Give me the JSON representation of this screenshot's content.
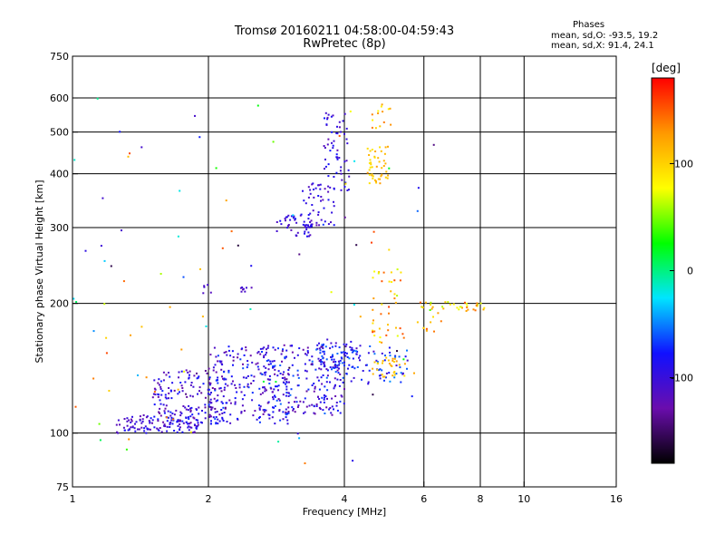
{
  "header": {
    "title_line1": "Tromsø 20160211 04:58:00-04:59:43",
    "title_line2": "RwPretec (8p)"
  },
  "stats": {
    "heading": "Phases",
    "line_o": "mean, sd,O: -93.5, 19.2",
    "line_x": "mean, sd,X:  91.4, 24.1"
  },
  "colorbar": {
    "title": "[deg]",
    "ticks": [
      "100",
      "0",
      "-100"
    ],
    "range": [
      -180,
      180
    ],
    "colors": [
      "#000000",
      "#6a0dad",
      "#1010ff",
      "#00e5ff",
      "#00ff00",
      "#ffff00",
      "#ff9900",
      "#ff0000"
    ]
  },
  "chart_data": {
    "type": "scatter",
    "xlabel": "Frequency [MHz]",
    "ylabel": "Stationary phase Virtual Height [km]",
    "xscale": "log",
    "yscale": "log",
    "xlim": [
      1,
      16
    ],
    "ylim": [
      75,
      750
    ],
    "xticks": [
      1,
      2,
      4,
      6,
      8,
      10,
      16
    ],
    "xtick_labels": [
      "1",
      "2",
      "4",
      "6",
      "8",
      "10",
      "16"
    ],
    "yticks": [
      75,
      100,
      200,
      300,
      400,
      500,
      600,
      750
    ],
    "ytick_labels": [
      "75",
      "100",
      "200",
      "300",
      "400",
      "500",
      "600",
      "750"
    ],
    "grid": true,
    "color_value": "phase",
    "series": [
      {
        "clusters": [
          {
            "fmin": 1.25,
            "fmax": 1.9,
            "hmin": 100,
            "hmax": 110,
            "n": 120,
            "phase": [
              -130,
              -70
            ]
          },
          {
            "fmin": 1.5,
            "fmax": 2.2,
            "hmin": 104,
            "hmax": 140,
            "n": 160,
            "phase": [
              -140,
              -70
            ]
          },
          {
            "fmin": 2.0,
            "fmax": 3.0,
            "hmin": 105,
            "hmax": 160,
            "n": 200,
            "phase": [
              -135,
              -60
            ]
          },
          {
            "fmin": 2.6,
            "fmax": 4.0,
            "hmin": 110,
            "hmax": 160,
            "n": 230,
            "phase": [
              -135,
              -55
            ]
          },
          {
            "fmin": 3.5,
            "fmax": 4.3,
            "hmin": 140,
            "hmax": 165,
            "n": 70,
            "phase": [
              -120,
              -50
            ]
          },
          {
            "fmin": 4.0,
            "fmax": 5.6,
            "hmin": 130,
            "hmax": 160,
            "n": 60,
            "phase": [
              -115,
              -45
            ]
          },
          {
            "fmin": 2.8,
            "fmax": 3.4,
            "hmin": 285,
            "hmax": 320,
            "n": 40,
            "phase": [
              -120,
              -80
            ]
          },
          {
            "fmin": 3.2,
            "fmax": 3.8,
            "hmin": 300,
            "hmax": 380,
            "n": 55,
            "phase": [
              -125,
              -80
            ]
          },
          {
            "fmin": 3.6,
            "fmax": 4.1,
            "hmin": 360,
            "hmax": 560,
            "n": 60,
            "phase": [
              -125,
              -75
            ]
          },
          {
            "fmin": 2.35,
            "fmax": 2.5,
            "hmin": 212,
            "hmax": 218,
            "n": 8,
            "phase": [
              -120,
              -100
            ]
          },
          {
            "fmin": 1.9,
            "fmax": 2.05,
            "hmin": 208,
            "hmax": 222,
            "n": 5,
            "phase": [
              -120,
              -100
            ]
          }
        ]
      },
      {
        "clusters": [
          {
            "fmin": 4.5,
            "fmax": 5.0,
            "hmin": 380,
            "hmax": 470,
            "n": 45,
            "phase": [
              85,
              130
            ]
          },
          {
            "fmin": 4.6,
            "fmax": 5.1,
            "hmin": 500,
            "hmax": 580,
            "n": 14,
            "phase": [
              80,
              140
            ]
          },
          {
            "fmin": 4.6,
            "fmax": 5.5,
            "hmin": 135,
            "hmax": 150,
            "n": 28,
            "phase": [
              90,
              130
            ]
          },
          {
            "fmin": 4.6,
            "fmax": 5.5,
            "hmin": 160,
            "hmax": 240,
            "n": 40,
            "phase": [
              60,
              160
            ]
          },
          {
            "fmin": 5.8,
            "fmax": 8.2,
            "hmin": 192,
            "hmax": 202,
            "n": 35,
            "phase": [
              60,
              150
            ]
          },
          {
            "fmin": 5.8,
            "fmax": 6.6,
            "hmin": 172,
            "hmax": 190,
            "n": 10,
            "phase": [
              90,
              160
            ]
          },
          {
            "fmin": 1.0,
            "fmax": 1.8,
            "hmin": 85,
            "hmax": 620,
            "n": 14,
            "phase": [
              100,
              170
            ]
          }
        ]
      },
      {
        "clusters": [
          {
            "fmin": 1.0,
            "fmax": 6.5,
            "hmin": 80,
            "hmax": 600,
            "n": 80,
            "phase": [
              -170,
              170
            ]
          }
        ]
      }
    ]
  }
}
